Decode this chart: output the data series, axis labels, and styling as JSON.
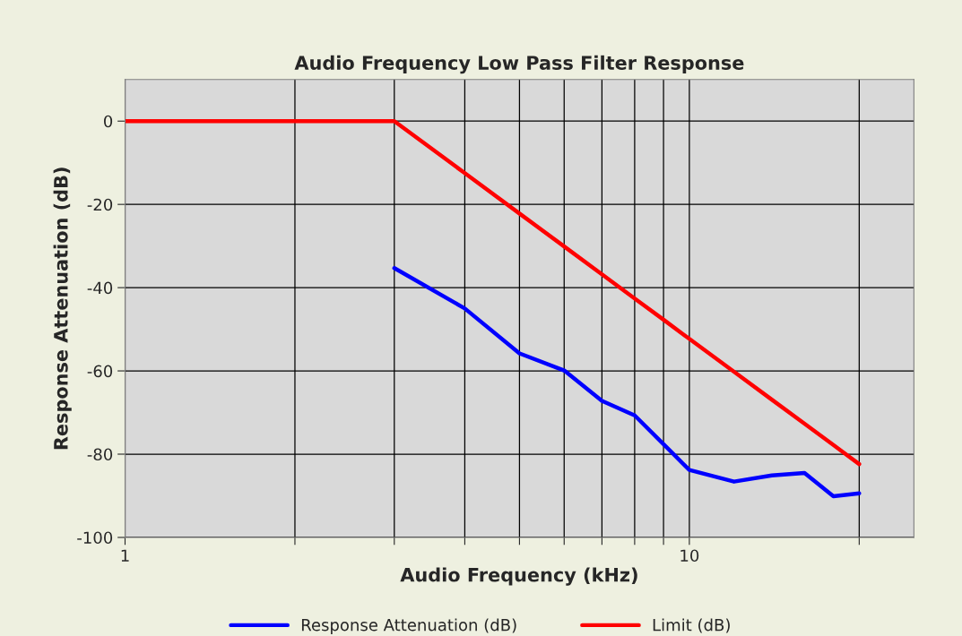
{
  "chart_data": {
    "type": "line",
    "title": "Audio Frequency Low Pass Filter Response",
    "xlabel": "Audio Frequency (kHz)",
    "ylabel": "Response Attenuation (dB)",
    "log": "x",
    "xlim": [
      1,
      25
    ],
    "xticks": [
      1,
      {
        "value": 2,
        "label": null
      },
      {
        "value": 3,
        "label": null
      },
      {
        "value": 4,
        "label": null
      },
      {
        "value": 5,
        "label": null
      },
      {
        "value": 6,
        "label": null
      },
      {
        "value": 7,
        "label": null
      },
      {
        "value": 8,
        "label": null
      },
      {
        "value": 9,
        "label": null
      },
      10,
      {
        "value": 20,
        "label": null
      }
    ],
    "ylim": [
      -100,
      10
    ],
    "yticks": [
      -100,
      -80,
      -60,
      -40,
      -20,
      0
    ],
    "grid": true,
    "legend": "bottom",
    "line_style": "solid",
    "marker": "none",
    "series": [
      {
        "name": "Response Attenuation (dB)",
        "color": "#0000ff",
        "x": [
          3,
          4,
          5,
          6,
          7,
          8,
          9,
          10,
          12,
          14,
          16,
          18,
          20
        ],
        "values": [
          -35.3,
          -45,
          -55.8,
          -59.9,
          -67.2,
          -70.7,
          -77.6,
          -83.8,
          -86.6,
          -85.1,
          -84.5,
          -90.1,
          -89.4
        ]
      },
      {
        "name": "Limit (dB)",
        "color": "#ff0000",
        "x": [
          1,
          3,
          4,
          5,
          6,
          7,
          8,
          9,
          10,
          12,
          14,
          16,
          18,
          20
        ],
        "values": [
          0,
          0,
          -12.5,
          -22.2,
          -30.1,
          -36.8,
          -42.6,
          -47.7,
          -52.3,
          -60.2,
          -66.9,
          -72.7,
          -77.8,
          -82.4
        ]
      }
    ]
  }
}
